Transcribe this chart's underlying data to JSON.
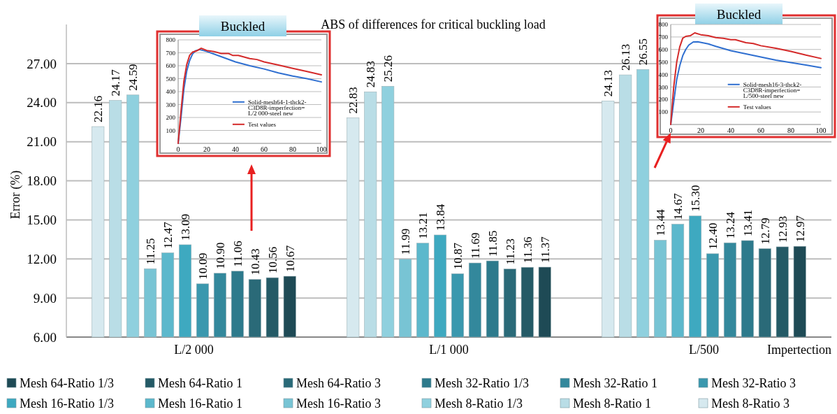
{
  "chart_data": [
    {
      "type": "bar",
      "title": "ABS of differences for critical buckling load",
      "ylabel": "Error (%)",
      "xlabel": "Impertection",
      "categories": [
        "L/2 000",
        "L/1 000",
        "L/500"
      ],
      "ylim": [
        6,
        30
      ],
      "yticks": [
        {
          "value": 6,
          "label": "6.00"
        },
        {
          "value": 9,
          "label": "9.00"
        },
        {
          "value": 12,
          "label": "12.00"
        },
        {
          "value": 15,
          "label": "15.00"
        },
        {
          "value": 18,
          "label": "18.00"
        },
        {
          "value": 21,
          "label": "21.00"
        },
        {
          "value": 24,
          "label": "24.00"
        },
        {
          "value": 27,
          "label": "27.00"
        }
      ],
      "grid": "y",
      "legend": "bottom",
      "series": [
        {
          "name": "Mesh 64-Ratio 1/3",
          "color": "#1e4a55",
          "values": [
            10.67,
            11.37,
            12.97
          ],
          "value_labels": [
            "10.67",
            "11.37",
            "12.97"
          ]
        },
        {
          "name": "Mesh 64-Ratio 1",
          "color": "#245a66",
          "values": [
            10.56,
            11.36,
            12.93
          ],
          "value_labels": [
            "10.56",
            "11.36",
            "12.93"
          ]
        },
        {
          "name": "Mesh 64-Ratio 3",
          "color": "#2a6a78",
          "values": [
            10.43,
            11.23,
            12.79
          ],
          "value_labels": [
            "10.43",
            "11.23",
            "12.79"
          ]
        },
        {
          "name": "Mesh 32-Ratio 1/3",
          "color": "#2d7a8c",
          "values": [
            11.06,
            11.85,
            13.41
          ],
          "value_labels": [
            "11.06",
            "11.85",
            "13.41"
          ]
        },
        {
          "name": "Mesh 32-Ratio 1",
          "color": "#33889c",
          "values": [
            10.9,
            11.69,
            13.24
          ],
          "value_labels": [
            "10.90",
            "11.69",
            "13.24"
          ]
        },
        {
          "name": "Mesh 32-Ratio 3",
          "color": "#3a98ae",
          "values": [
            10.09,
            10.87,
            12.4
          ],
          "value_labels": [
            "10.09",
            "10.87",
            "12.40"
          ]
        },
        {
          "name": "Mesh 16-Ratio 1/3",
          "color": "#3ea9c0",
          "values": [
            13.09,
            13.84,
            15.3
          ],
          "value_labels": [
            "13.09",
            "13.84",
            "15.30"
          ]
        },
        {
          "name": "Mesh 16-Ratio 1",
          "color": "#5cb8cc",
          "values": [
            12.47,
            13.21,
            14.67
          ],
          "value_labels": [
            "12.47",
            "13.21",
            "14.67"
          ]
        },
        {
          "name": "Mesh 16-Ratio 3",
          "color": "#78c4d4",
          "values": [
            11.25,
            11.99,
            13.44
          ],
          "value_labels": [
            "11.25",
            "11.99",
            "13.44"
          ]
        },
        {
          "name": "Mesh 8-Ratio 1/3",
          "color": "#8fd0de",
          "values": [
            24.59,
            25.26,
            26.55
          ],
          "value_labels": [
            "24.59",
            "25.26",
            "26.55"
          ]
        },
        {
          "name": "Mesh 8-Ratio 1",
          "color": "#b9dde6",
          "values": [
            24.17,
            24.83,
            26.13
          ],
          "value_labels": [
            "24.17",
            "24.83",
            "26.13"
          ]
        },
        {
          "name": "Mesh 8-Ratio 3",
          "color": "#d6e9ef",
          "values": [
            22.16,
            22.83,
            24.13
          ],
          "value_labels": [
            "22.16",
            "22.83",
            "24.13"
          ]
        }
      ]
    },
    {
      "type": "line",
      "title": "Buckled",
      "xlim": [
        0,
        100
      ],
      "ylim": [
        0,
        800
      ],
      "xticks": [
        0,
        20,
        40,
        60,
        80,
        100
      ],
      "yticks": [
        100,
        200,
        300,
        400,
        500,
        600,
        700,
        800
      ],
      "grid": "y",
      "legend": "bottom right",
      "series": [
        {
          "name": "Solid-mesh64-1-thck2-C3D8R-imperfection= L/2 000-steel new",
          "color": "#2f6fd0",
          "x": [
            0,
            2,
            4,
            6,
            8,
            10,
            12,
            15,
            20,
            30,
            40,
            50,
            60,
            70,
            80,
            90,
            100
          ],
          "values": [
            0,
            200,
            420,
            560,
            640,
            690,
            715,
            725,
            710,
            670,
            630,
            600,
            575,
            545,
            520,
            500,
            475
          ]
        },
        {
          "name": "Test values",
          "color": "#d42a2a",
          "x": [
            0,
            2,
            4,
            6,
            8,
            10,
            13,
            16,
            20,
            25,
            30,
            35,
            38,
            42,
            50,
            55,
            60,
            70,
            80,
            90,
            100
          ],
          "values": [
            0,
            250,
            480,
            610,
            680,
            705,
            715,
            735,
            718,
            710,
            695,
            695,
            680,
            680,
            655,
            648,
            630,
            605,
            580,
            555,
            530
          ]
        }
      ]
    },
    {
      "type": "line",
      "title": "Buckled",
      "xlim": [
        0,
        100
      ],
      "ylim": [
        0,
        800
      ],
      "xticks": [
        0,
        20,
        40,
        60,
        80,
        100
      ],
      "yticks": [
        100,
        200,
        300,
        400,
        500,
        600,
        700,
        800
      ],
      "grid": "y",
      "legend": "bottom right",
      "series": [
        {
          "name": "Solid-mesh16-3-thck2-C3D8R-imperfection= L/500-steel new",
          "color": "#2f6fd0",
          "x": [
            0,
            2,
            4,
            6,
            8,
            10,
            12,
            15,
            18,
            25,
            30,
            40,
            50,
            60,
            70,
            80,
            90,
            100
          ],
          "values": [
            0,
            180,
            360,
            470,
            550,
            600,
            635,
            660,
            662,
            645,
            625,
            590,
            565,
            540,
            515,
            495,
            475,
            455
          ]
        },
        {
          "name": "Test values",
          "color": "#d42a2a",
          "x": [
            0,
            2,
            4,
            6,
            8,
            10,
            13,
            16,
            20,
            25,
            30,
            35,
            40,
            43,
            50,
            55,
            60,
            70,
            80,
            90,
            100
          ],
          "values": [
            0,
            300,
            500,
            620,
            690,
            705,
            710,
            733,
            718,
            710,
            695,
            690,
            678,
            678,
            655,
            648,
            630,
            610,
            585,
            555,
            528
          ]
        }
      ]
    }
  ]
}
